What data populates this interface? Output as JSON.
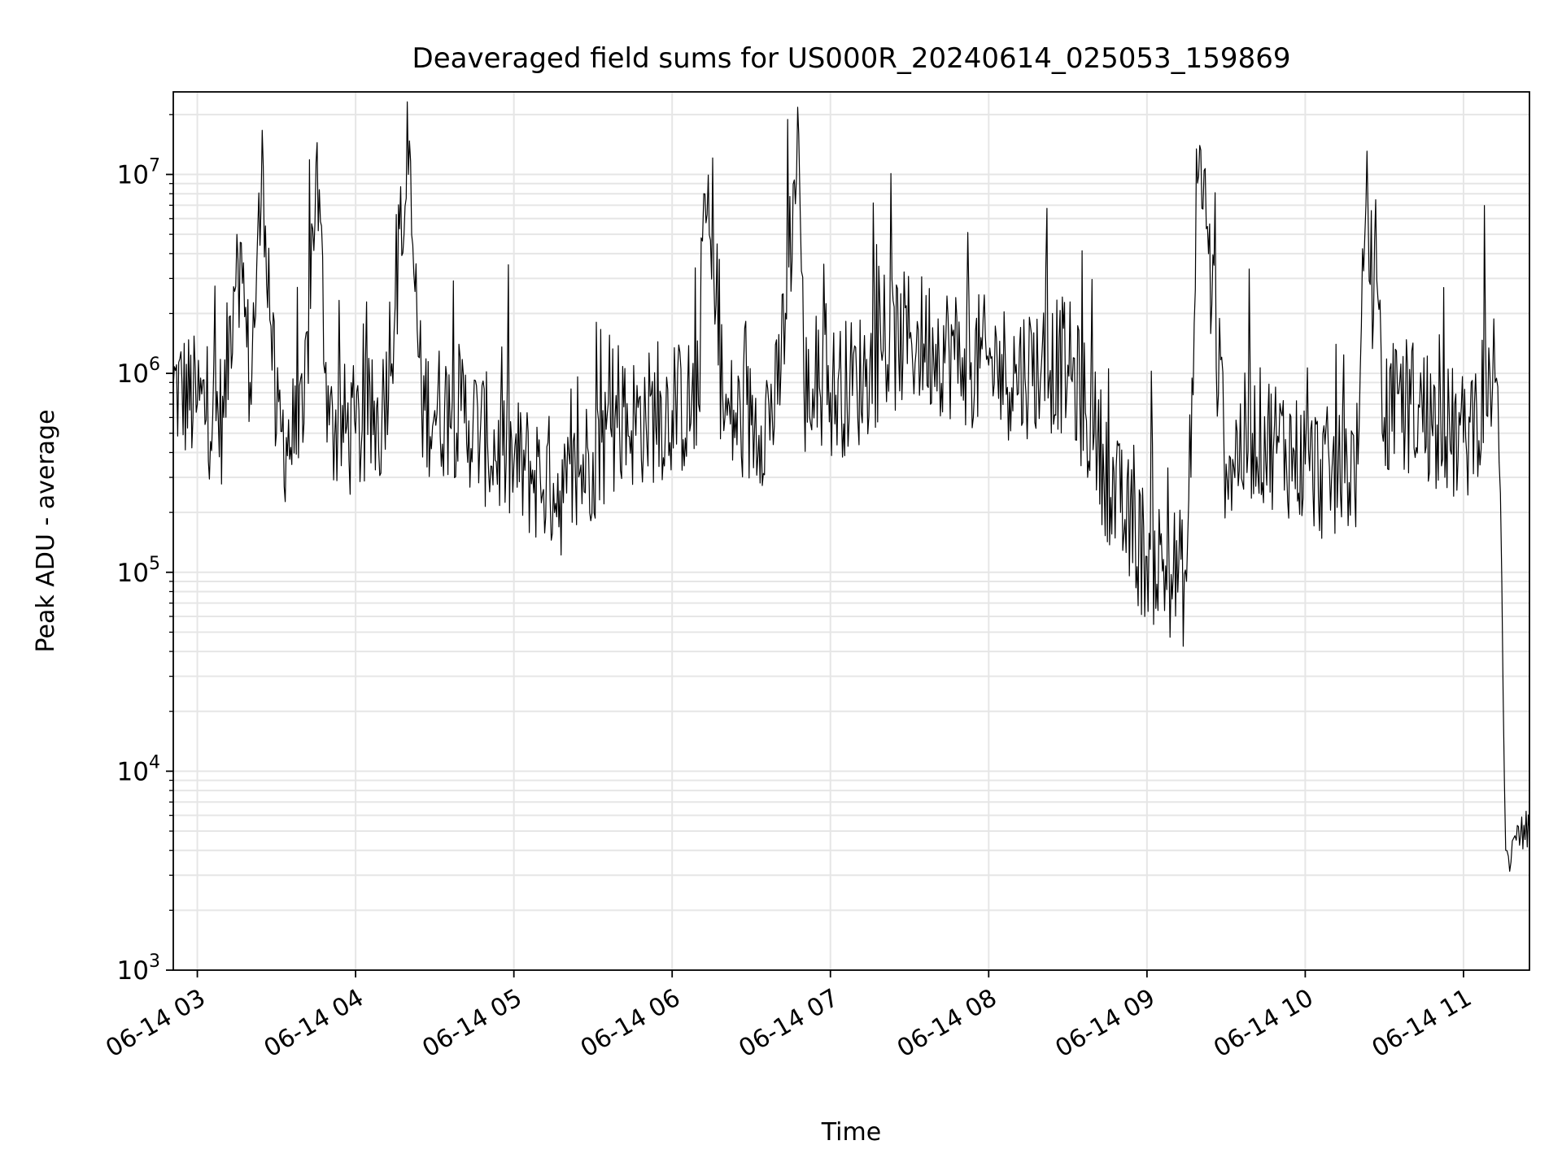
{
  "chart_data": {
    "type": "line",
    "title": "Deaveraged field sums for US000R_20240614_025053_159869",
    "xlabel": "Time",
    "ylabel": "Peak ADU - average",
    "y_scale": "log",
    "ylim": [
      1000,
      26000000
    ],
    "xlim": [
      "2024-06-14 02:50:53",
      "2024-06-14 11:25:00"
    ],
    "grid": true,
    "x_ticks": [
      "06-14 03",
      "06-14 04",
      "06-14 05",
      "06-14 06",
      "06-14 07",
      "06-14 08",
      "06-14 09",
      "06-14 10",
      "06-14 11"
    ],
    "y_ticks": [
      {
        "base": "10",
        "exp": "3",
        "value": 1000
      },
      {
        "base": "10",
        "exp": "4",
        "value": 10000
      },
      {
        "base": "10",
        "exp": "5",
        "value": 100000
      },
      {
        "base": "10",
        "exp": "6",
        "value": 1000000
      },
      {
        "base": "10",
        "exp": "7",
        "value": 10000000
      }
    ],
    "series": [
      {
        "color": "#000000",
        "x": [
          "2024-06-14 02:50:53",
          "2024-06-14 03:00",
          "2024-06-14 03:10",
          "2024-06-14 03:15",
          "2024-06-14 03:20",
          "2024-06-14 03:25",
          "2024-06-14 03:30",
          "2024-06-14 03:40",
          "2024-06-14 03:45",
          "2024-06-14 03:50",
          "2024-06-14 04:00",
          "2024-06-14 04:10",
          "2024-06-14 04:20",
          "2024-06-14 04:25",
          "2024-06-14 04:30",
          "2024-06-14 04:40",
          "2024-06-14 04:50",
          "2024-06-14 05:00",
          "2024-06-14 05:10",
          "2024-06-14 05:15",
          "2024-06-14 05:20",
          "2024-06-14 05:30",
          "2024-06-14 05:40",
          "2024-06-14 05:50",
          "2024-06-14 06:00",
          "2024-06-14 06:10",
          "2024-06-14 06:12",
          "2024-06-14 06:20",
          "2024-06-14 06:30",
          "2024-06-14 06:40",
          "2024-06-14 06:48",
          "2024-06-14 06:50",
          "2024-06-14 07:00",
          "2024-06-14 07:10",
          "2024-06-14 07:20",
          "2024-06-14 07:30",
          "2024-06-14 07:40",
          "2024-06-14 07:50",
          "2024-06-14 08:00",
          "2024-06-14 08:10",
          "2024-06-14 08:20",
          "2024-06-14 08:30",
          "2024-06-14 08:40",
          "2024-06-14 08:50",
          "2024-06-14 09:00",
          "2024-06-14 09:10",
          "2024-06-14 09:15",
          "2024-06-14 09:20",
          "2024-06-14 09:30",
          "2024-06-14 09:40",
          "2024-06-14 09:50",
          "2024-06-14 10:00",
          "2024-06-14 10:10",
          "2024-06-14 10:20",
          "2024-06-14 10:23",
          "2024-06-14 10:30",
          "2024-06-14 10:40",
          "2024-06-14 10:50",
          "2024-06-14 11:00",
          "2024-06-14 11:05",
          "2024-06-14 11:10",
          "2024-06-14 11:12",
          "2024-06-14 11:14",
          "2024-06-14 11:16",
          "2024-06-14 11:18",
          "2024-06-14 11:20",
          "2024-06-14 11:25"
        ],
        "y": [
          850000,
          700000,
          600000,
          5000000,
          900000,
          11000000,
          500000,
          450000,
          11500000,
          550000,
          500000,
          600000,
          10000000,
          700000,
          650000,
          650000,
          450000,
          350000,
          300000,
          280000,
          250000,
          400000,
          550000,
          600000,
          650000,
          700000,
          8000000,
          600000,
          550000,
          700000,
          16000000,
          800000,
          800000,
          900000,
          1300000,
          1500000,
          1400000,
          1200000,
          1100000,
          1000000,
          1100000,
          1100000,
          500000,
          200000,
          120000,
          100000,
          90000,
          14000000,
          350000,
          500000,
          450000,
          350000,
          300000,
          350000,
          7000000,
          600000,
          700000,
          550000,
          450000,
          650000,
          1000000,
          900000,
          250000,
          4000,
          3500,
          4500,
          5000
        ]
      }
    ]
  }
}
